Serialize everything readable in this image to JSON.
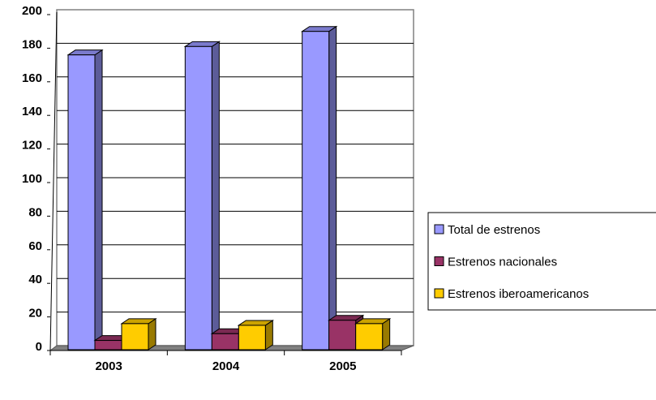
{
  "chart_data": {
    "type": "bar3d",
    "categories": [
      "2003",
      "2004",
      "2005"
    ],
    "series": [
      {
        "name": "Total de estrenos",
        "color": "#9999ff",
        "values": [
          176,
          181,
          190
        ]
      },
      {
        "name": "Estrenos nacionales",
        "color": "#993366",
        "values": [
          6,
          10,
          18
        ]
      },
      {
        "name": "Estrenos iberoamericanos",
        "color": "#ffcc00",
        "values": [
          16,
          15,
          16
        ]
      }
    ],
    "ylim": [
      0,
      200
    ],
    "yticks": [
      0,
      20,
      40,
      60,
      80,
      100,
      120,
      140,
      160,
      180,
      200
    ],
    "grid": true,
    "legend": "right"
  }
}
